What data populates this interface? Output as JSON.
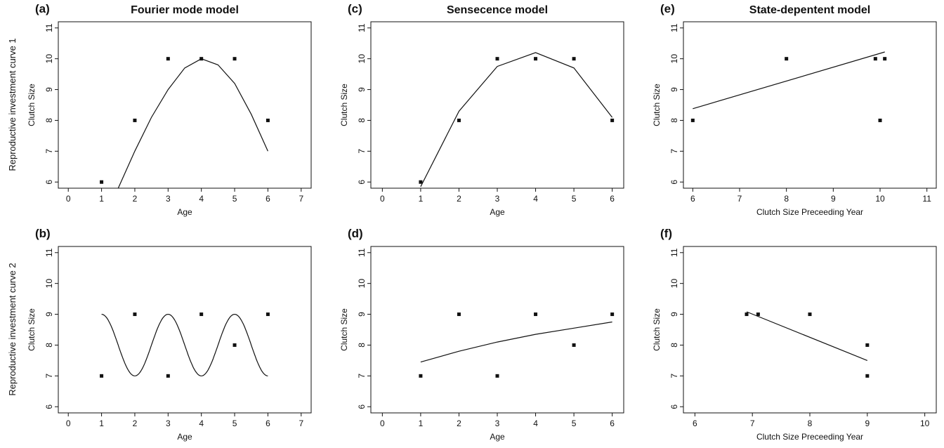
{
  "row_labels": [
    "Reproductive investment curve 1",
    "Reproductive investment curve 2"
  ],
  "chart_data": [
    {
      "panel": "(a)",
      "title": "Fourier mode model",
      "type": "scatter",
      "xlabel": "Age",
      "ylabel": "Clutch Size",
      "xlim": [
        -0.3,
        7.3
      ],
      "ylim": [
        5.8,
        11.2
      ],
      "xticks": [
        0,
        1,
        2,
        3,
        4,
        5,
        6,
        7
      ],
      "yticks": [
        6,
        7,
        8,
        9,
        10,
        11
      ],
      "points": [
        [
          1,
          6
        ],
        [
          2,
          8
        ],
        [
          3,
          10
        ],
        [
          4,
          10
        ],
        [
          5,
          10
        ],
        [
          6,
          8
        ]
      ],
      "curve": [
        [
          1.5,
          5.8
        ],
        [
          2,
          7.0
        ],
        [
          2.5,
          8.1
        ],
        [
          3,
          9.0
        ],
        [
          3.5,
          9.7
        ],
        [
          4,
          10.0
        ],
        [
          4.5,
          9.8
        ],
        [
          5,
          9.2
        ],
        [
          5.5,
          8.2
        ],
        [
          6,
          7.0
        ]
      ]
    },
    {
      "panel": "(c)",
      "title": "Sensecence model",
      "type": "scatter",
      "xlabel": "Age",
      "ylabel": "Clutch Size",
      "xlim": [
        -0.3,
        6.3
      ],
      "ylim": [
        5.8,
        11.2
      ],
      "xticks": [
        0,
        1,
        2,
        3,
        4,
        5,
        6
      ],
      "yticks": [
        6,
        7,
        8,
        9,
        10,
        11
      ],
      "points": [
        [
          1,
          6
        ],
        [
          2,
          8
        ],
        [
          3,
          10
        ],
        [
          4,
          10
        ],
        [
          5,
          10
        ],
        [
          6,
          8
        ]
      ],
      "curve": [
        [
          1,
          5.85
        ],
        [
          2,
          8.3
        ],
        [
          3,
          9.75
        ],
        [
          4,
          10.2
        ],
        [
          5,
          9.7
        ],
        [
          6,
          8.1
        ]
      ]
    },
    {
      "panel": "(e)",
      "title": "State-depentent model",
      "type": "scatter",
      "xlabel": "Clutch Size Preceeding Year",
      "ylabel": "Clutch Size",
      "xlim": [
        5.8,
        11.2
      ],
      "ylim": [
        5.8,
        11.2
      ],
      "xticks": [
        6,
        7,
        8,
        9,
        10,
        11
      ],
      "yticks": [
        6,
        7,
        8,
        9,
        10,
        11
      ],
      "points": [
        [
          6,
          8
        ],
        [
          8,
          10
        ],
        [
          9.9,
          10
        ],
        [
          10,
          8
        ],
        [
          10.1,
          10
        ]
      ],
      "curve": [
        [
          6,
          8.38
        ],
        [
          10.1,
          10.22
        ]
      ]
    },
    {
      "panel": "(b)",
      "title": "",
      "type": "scatter",
      "xlabel": "Age",
      "ylabel": "Clutch Size",
      "xlim": [
        -0.3,
        7.3
      ],
      "ylim": [
        5.8,
        11.2
      ],
      "xticks": [
        0,
        1,
        2,
        3,
        4,
        5,
        6,
        7
      ],
      "yticks": [
        6,
        7,
        8,
        9,
        10,
        11
      ],
      "points": [
        [
          1,
          7
        ],
        [
          2,
          9
        ],
        [
          3,
          7
        ],
        [
          4,
          9
        ],
        [
          5,
          8
        ],
        [
          6,
          9
        ]
      ],
      "curve_fn": "sine",
      "curve_range": [
        1,
        6
      ]
    },
    {
      "panel": "(d)",
      "title": "",
      "type": "scatter",
      "xlabel": "Age",
      "ylabel": "Clutch Size",
      "xlim": [
        -0.3,
        6.3
      ],
      "ylim": [
        5.8,
        11.2
      ],
      "xticks": [
        0,
        1,
        2,
        3,
        4,
        5,
        6
      ],
      "yticks": [
        6,
        7,
        8,
        9,
        10,
        11
      ],
      "points": [
        [
          1,
          7
        ],
        [
          2,
          9
        ],
        [
          3,
          7
        ],
        [
          4,
          9
        ],
        [
          5,
          8
        ],
        [
          6,
          9
        ]
      ],
      "curve": [
        [
          1,
          7.45
        ],
        [
          2,
          7.8
        ],
        [
          3,
          8.1
        ],
        [
          4,
          8.35
        ],
        [
          5,
          8.55
        ],
        [
          6,
          8.75
        ]
      ]
    },
    {
      "panel": "(f)",
      "title": "",
      "type": "scatter",
      "xlabel": "Clutch Size Preceeding Year",
      "ylabel": "Clutch Size",
      "xlim": [
        5.8,
        10.2
      ],
      "ylim": [
        5.8,
        11.2
      ],
      "xticks": [
        6,
        7,
        8,
        9,
        10
      ],
      "yticks": [
        6,
        7,
        8,
        9,
        10,
        11
      ],
      "points": [
        [
          6.9,
          9
        ],
        [
          7.1,
          9
        ],
        [
          8,
          9
        ],
        [
          9,
          8
        ],
        [
          9,
          7
        ]
      ],
      "curve": [
        [
          6.9,
          9.08
        ],
        [
          9,
          7.5
        ]
      ]
    }
  ]
}
